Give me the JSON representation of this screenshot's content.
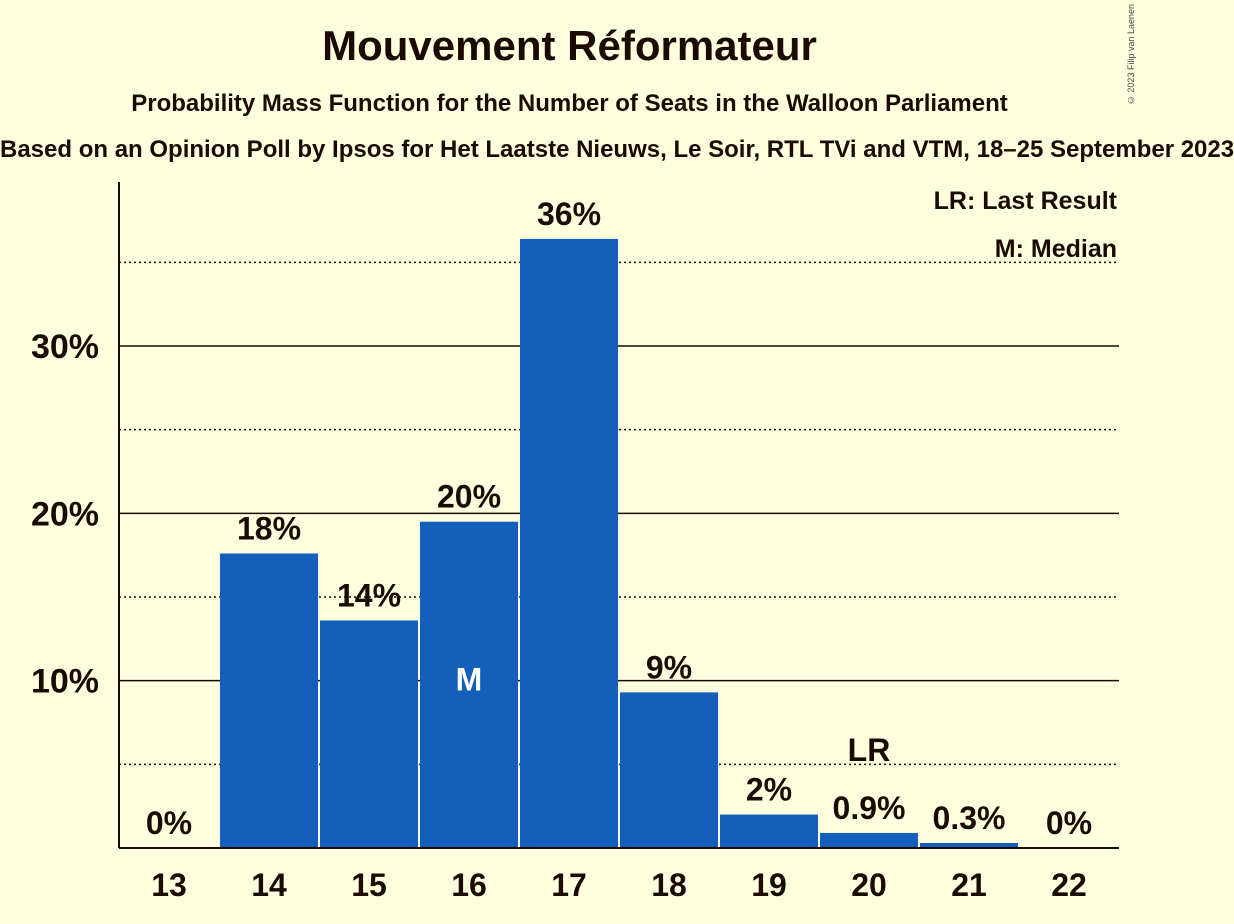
{
  "title": "Mouvement Réformateur",
  "subtitle": "Probability Mass Function for the Number of Seats in the Walloon Parliament",
  "subsubtitle": "Based on an Opinion Poll by Ipsos for Het Laatste Nieuws, Le Soir, RTL TVi and VTM, 18–25 September 2023",
  "copyright": "© 2023 Filip van Laenen",
  "legend": {
    "last_result": "LR: Last Result",
    "median": "M: Median"
  },
  "colors": {
    "background": "#ffffe0",
    "bar": "#135fb9",
    "text": "#1a0a00"
  },
  "chart_data": {
    "type": "bar",
    "categories": [
      "13",
      "14",
      "15",
      "16",
      "17",
      "18",
      "19",
      "20",
      "21",
      "22"
    ],
    "values": [
      0,
      17.6,
      13.6,
      19.5,
      36.4,
      9.3,
      2.0,
      0.9,
      0.3,
      0
    ],
    "labels": [
      "0%",
      "18%",
      "14%",
      "20%",
      "36%",
      "9%",
      "2%",
      "0.9%",
      "0.3%",
      "0%"
    ],
    "ylim": [
      0,
      39.8
    ],
    "yticks": [
      10,
      20,
      30
    ],
    "ytick_labels": [
      "10%",
      "20%",
      "30%"
    ],
    "minor_gridlines": [
      5,
      15,
      25,
      35
    ],
    "median_category": "16",
    "median_marker": "M",
    "last_result_category": "20",
    "last_result_marker": "LR",
    "grid": true,
    "legend_placement": "top-right"
  }
}
